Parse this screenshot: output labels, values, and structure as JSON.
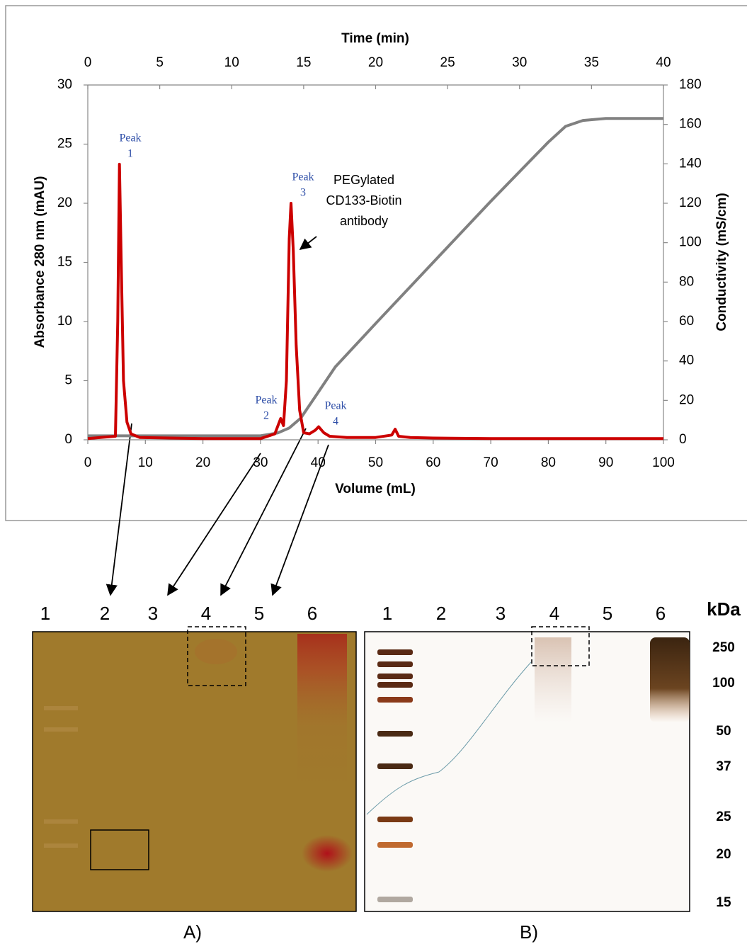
{
  "chart_data": {
    "type": "line",
    "xlabel": "Volume (mL)",
    "ylabel": "Absorbance 280 nm (mAU)",
    "y2label": "Conductivity (mS/cm)",
    "x2label": "Time (min)",
    "xlim": [
      0,
      100
    ],
    "xticks": [
      0,
      10,
      20,
      30,
      40,
      50,
      60,
      70,
      80,
      90,
      100
    ],
    "x2lim": [
      0,
      40
    ],
    "x2ticks": [
      0,
      5,
      10,
      15,
      20,
      25,
      30,
      35,
      40
    ],
    "ylim": [
      0,
      30
    ],
    "yticks": [
      0,
      5,
      10,
      15,
      20,
      25,
      30
    ],
    "y2lim": [
      0,
      180
    ],
    "y2ticks": [
      0,
      20,
      40,
      60,
      80,
      100,
      120,
      140,
      160,
      180
    ],
    "grid": false,
    "series": [
      {
        "color": "#cc0000",
        "axis": "y",
        "x": [
          0,
          4.8,
          5.2,
          5.5,
          5.8,
          6.2,
          6.8,
          7.5,
          9,
          20,
          30,
          32.5,
          33.5,
          34,
          34.5,
          35,
          35.3,
          35.7,
          36.2,
          36.8,
          37.5,
          38.5,
          39.5,
          40.1,
          41,
          42,
          45,
          50,
          52.8,
          53.4,
          54,
          56,
          60,
          70,
          80,
          90,
          100
        ],
        "values": [
          0.1,
          0.3,
          10,
          23.3,
          15,
          5,
          1.5,
          0.5,
          0.2,
          0.1,
          0.1,
          0.5,
          1.8,
          1.2,
          5,
          17,
          20,
          16,
          8,
          2.5,
          0.6,
          0.5,
          0.8,
          1.1,
          0.6,
          0.3,
          0.2,
          0.2,
          0.4,
          0.9,
          0.3,
          0.2,
          0.15,
          0.1,
          0.1,
          0.1,
          0.1
        ]
      },
      {
        "color": "#808080",
        "axis": "y2",
        "x": [
          0,
          30,
          33,
          35,
          37,
          40,
          43,
          50,
          60,
          70,
          80,
          83,
          86,
          90,
          100
        ],
        "values": [
          2,
          2,
          3.5,
          6,
          11,
          24,
          37,
          59,
          90,
          121,
          151,
          159,
          162,
          163,
          163
        ]
      }
    ],
    "annotations": [
      {
        "lines": [
          "Peak",
          "1"
        ]
      },
      {
        "lines": [
          "Peak",
          "2"
        ]
      },
      {
        "lines": [
          "Peak",
          "3"
        ]
      },
      {
        "lines": [
          "Peak",
          "4"
        ]
      },
      {
        "lines": [
          "PEGylated",
          "CD133-Biotin",
          "antibody"
        ]
      }
    ]
  },
  "gel_a": {
    "lanes": [
      "1",
      "2",
      "3",
      "4",
      "5",
      "6"
    ],
    "caption": "A)"
  },
  "gel_b": {
    "lanes": [
      "1",
      "2",
      "3",
      "4",
      "5",
      "6"
    ],
    "caption": "B)"
  },
  "markers": {
    "unit": "kDa",
    "labels": [
      "250",
      "100",
      "50",
      "37",
      "25",
      "20",
      "15"
    ]
  }
}
